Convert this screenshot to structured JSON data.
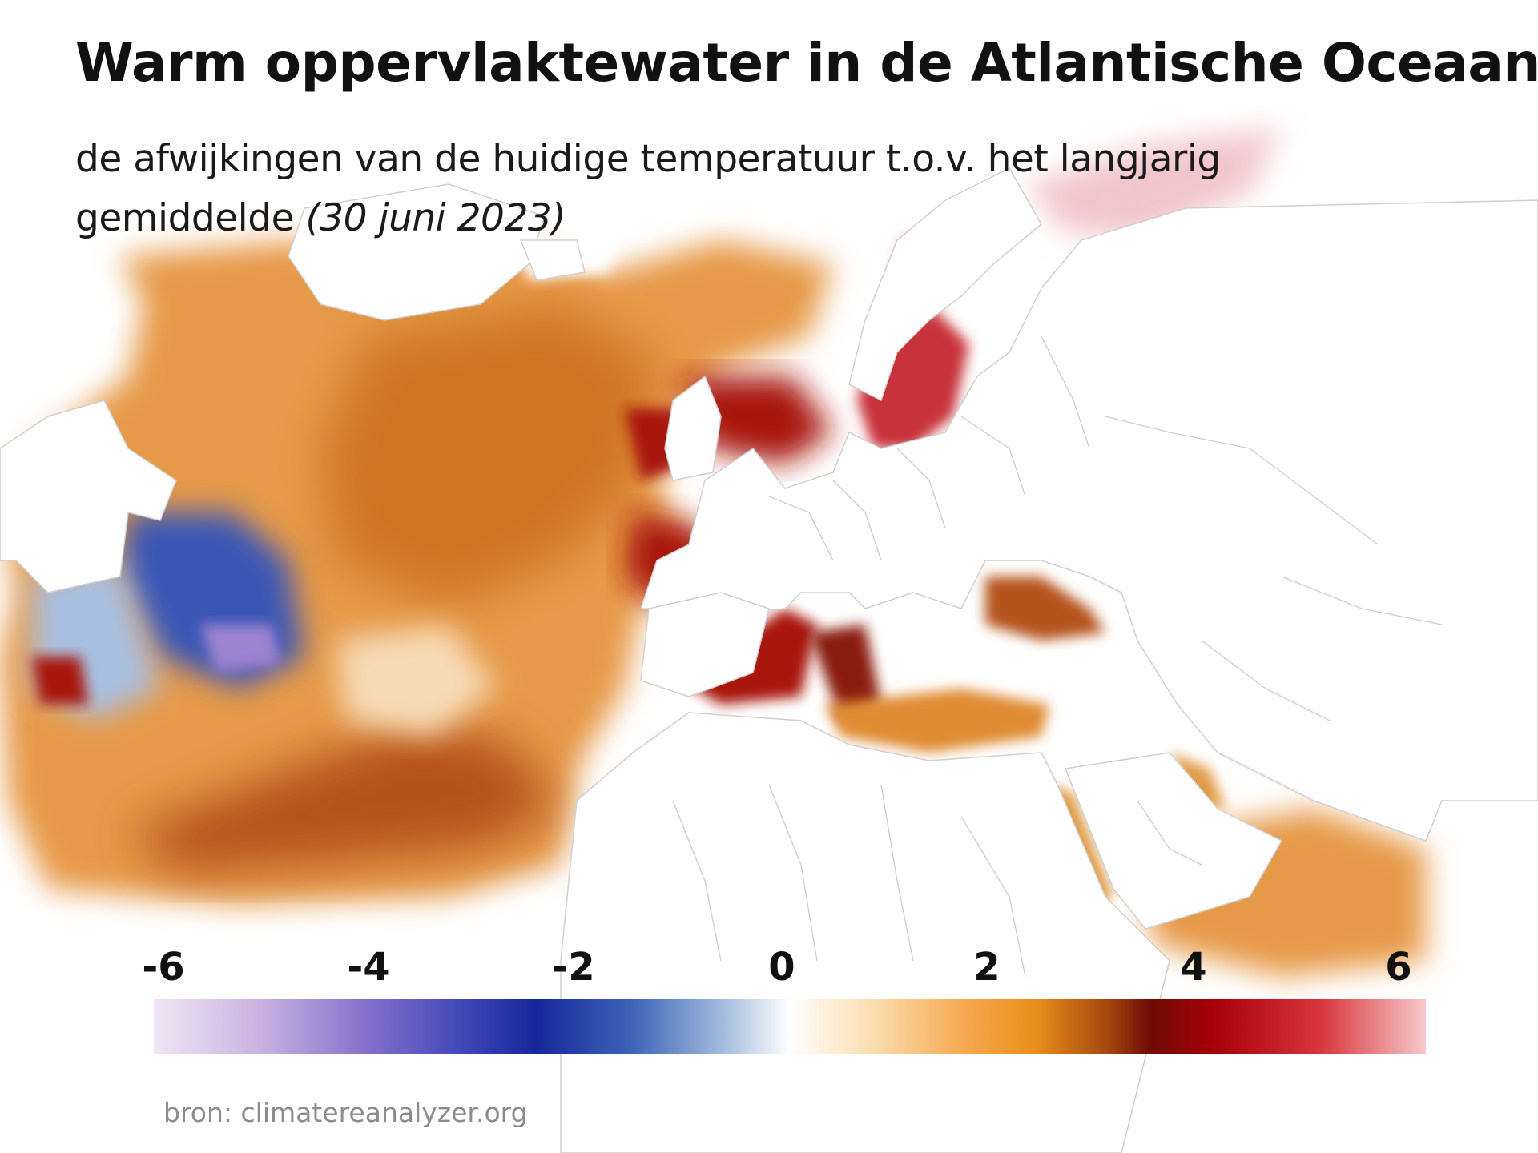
{
  "title": "Warm oppervlaktewater in de Atlantische Oceaan",
  "subtitle": {
    "text": "de afwijkingen van de huidige temperatuur t.o.v. het langjarig gemiddelde",
    "date": "(30 juni 2023)"
  },
  "legend": {
    "tick_labels": [
      "-6",
      "-4",
      "-2",
      "0",
      "2",
      "4",
      "6"
    ],
    "min": -6,
    "max": 6,
    "stops": [
      {
        "value": -6,
        "color": "#f1e6f4"
      },
      {
        "value": -5,
        "color": "#c9b2e0"
      },
      {
        "value": -4,
        "color": "#8571cc"
      },
      {
        "value": -3,
        "color": "#3b43b5"
      },
      {
        "value": -2.4,
        "color": "#17279b"
      },
      {
        "value": -1.5,
        "color": "#3d63b8"
      },
      {
        "value": -0.7,
        "color": "#9bb4da"
      },
      {
        "value": 0,
        "color": "#ffffff"
      },
      {
        "value": 0.8,
        "color": "#fbdcae"
      },
      {
        "value": 1.7,
        "color": "#f4a64a"
      },
      {
        "value": 2.3,
        "color": "#ea8f1c"
      },
      {
        "value": 3.0,
        "color": "#a5470f"
      },
      {
        "value": 3.4,
        "color": "#6e0b06"
      },
      {
        "value": 4.0,
        "color": "#a70008"
      },
      {
        "value": 5.0,
        "color": "#d8353c"
      },
      {
        "value": 6,
        "color": "#f6c9cc"
      }
    ]
  },
  "source": "bron: climatereanalyzer.org",
  "map": {
    "description_colors": {
      "land": "#ffffff",
      "borders": "#c9c9c9",
      "warm_anomaly": "#e08a2a",
      "strong_warm_anomaly": "#a81308",
      "cold_anomaly": "#3b57b5"
    }
  }
}
